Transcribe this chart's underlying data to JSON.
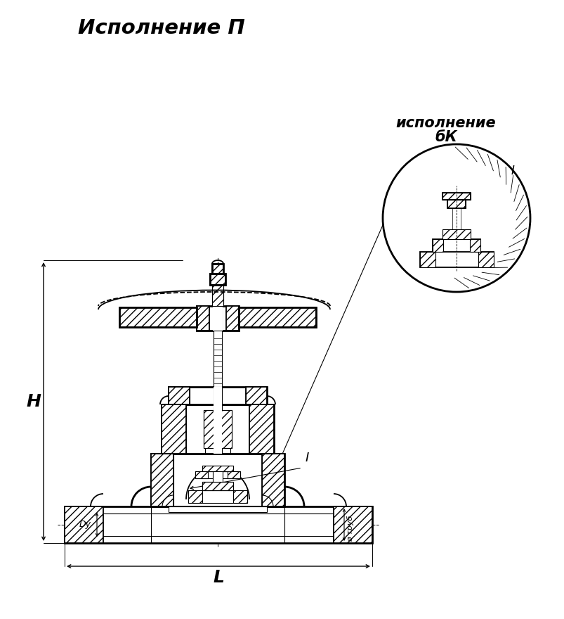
{
  "title_top": "Исполнение П",
  "title_inset_line1": "исполнение",
  "title_inset_line2": "бК",
  "label_H": "Н",
  "label_L": "L",
  "label_Dy": "Dy",
  "label_d_trub": "d труб",
  "label_I": "I",
  "bg_color": "#ffffff",
  "line_color": "#000000",
  "fig_width": 8.04,
  "fig_height": 8.8,
  "dpi": 100
}
